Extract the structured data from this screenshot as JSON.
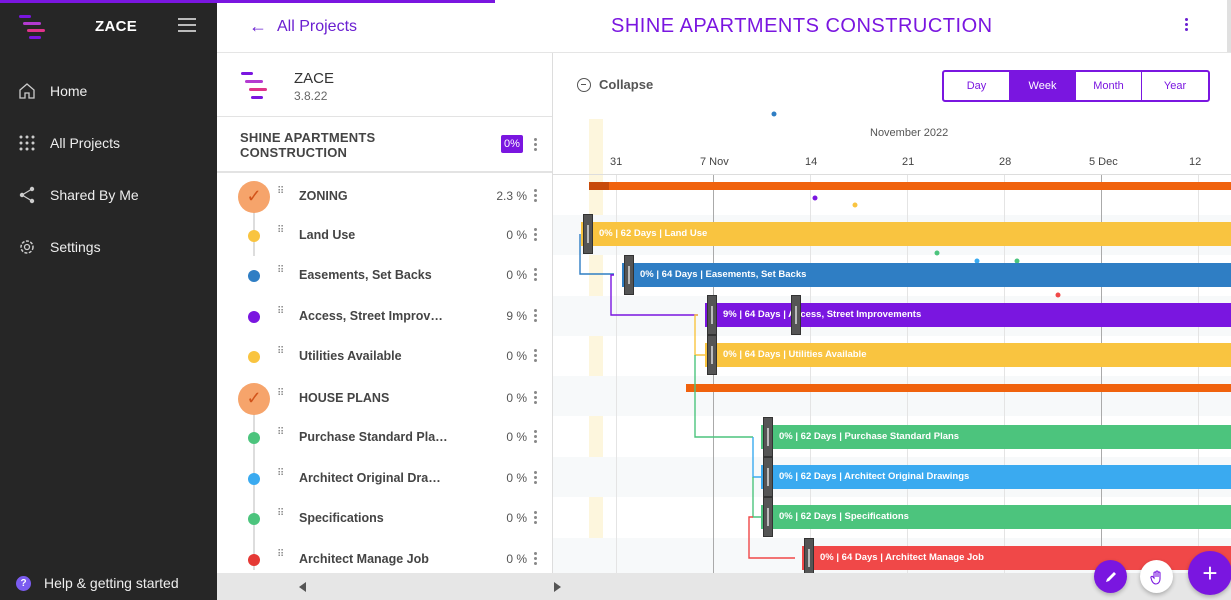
{
  "sidebar": {
    "brand": "ZACE",
    "nav": [
      {
        "label": "Home",
        "icon": "home-icon"
      },
      {
        "label": "All Projects",
        "icon": "grid-icon"
      },
      {
        "label": "Shared By Me",
        "icon": "share-icon"
      },
      {
        "label": "Settings",
        "icon": "gear-icon"
      }
    ],
    "help_label": "Help & getting started"
  },
  "header": {
    "back_label": "All Projects",
    "title": "SHINE APARTMENTS CONSTRUCTION"
  },
  "project_panel": {
    "app_name": "ZACE",
    "version": "3.8.22",
    "project_title": "SHINE APARTMENTS CONSTRUCTION",
    "project_pct": "0%"
  },
  "tasks": [
    {
      "name": "ZONING",
      "pct": "2.3 %",
      "type": "group"
    },
    {
      "name": "Land Use",
      "pct": "0 %",
      "color": "#f9c440"
    },
    {
      "name": "Easements, Set Backs",
      "pct": "0 %",
      "color": "#2f7ec4"
    },
    {
      "name": "Access, Street Improvem...",
      "pct": "9 %",
      "color": "#7a16e0"
    },
    {
      "name": "Utilities Available",
      "pct": "0 %",
      "color": "#f9c440"
    },
    {
      "name": "HOUSE PLANS",
      "pct": "0 %",
      "type": "group"
    },
    {
      "name": "Purchase Standard Plans",
      "pct": "0 %",
      "color": "#4cc47d"
    },
    {
      "name": "Architect Original Drawings",
      "pct": "0 %",
      "color": "#3aaaf0"
    },
    {
      "name": "Specifications",
      "pct": "0 %",
      "color": "#4cc47d"
    },
    {
      "name": "Architect Manage Job",
      "pct": "0 %",
      "color": "#e53935"
    }
  ],
  "gantt": {
    "collapse_label": "Collapse",
    "views": [
      "Day",
      "Week",
      "Month",
      "Year"
    ],
    "active_view": "Week",
    "month_label": "November 2022",
    "ticks": [
      "31",
      "7 Nov",
      "14",
      "21",
      "28",
      "5 Dec",
      "12"
    ],
    "bars": [
      {
        "label": "0% | 62 Days | Land Use",
        "color": "#f9c440"
      },
      {
        "label": "0% | 64 Days | Easements, Set Backs",
        "color": "#2f7ec4"
      },
      {
        "label": "9% | 64 Days | Access, Street Improvements",
        "color": "#7a16e0"
      },
      {
        "label": "0% | 64 Days | Utilities Available",
        "color": "#f9c440"
      },
      {
        "label": "0% | 62 Days | Purchase Standard Plans",
        "color": "#4cc47d"
      },
      {
        "label": "0% | 62 Days | Architect Original Drawings",
        "color": "#3aaaf0"
      },
      {
        "label": "0% | 62 Days | Specifications",
        "color": "#4cc47d"
      },
      {
        "label": "0% | 64 Days | Architect Manage Job",
        "color": "#f04848"
      }
    ],
    "summary_color": "#f0620d"
  },
  "colors": {
    "accent": "#7a16e0",
    "sidebar_bg": "#262626"
  }
}
